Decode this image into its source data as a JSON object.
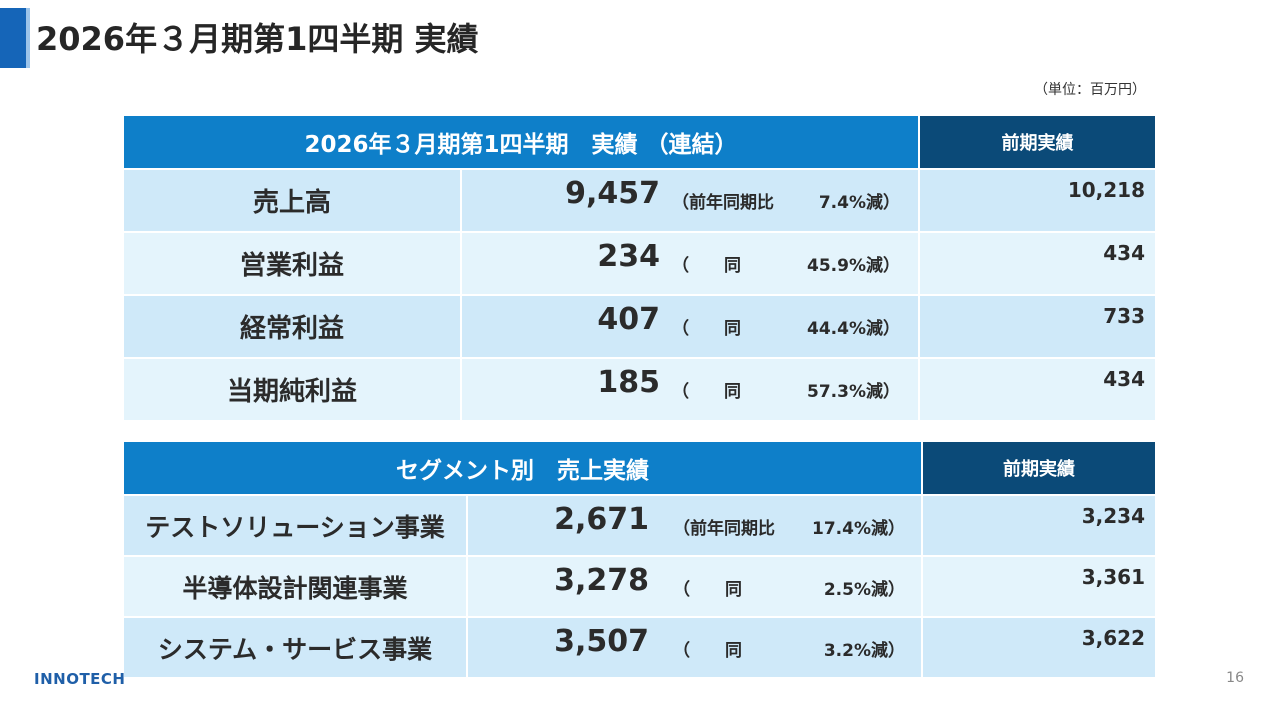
{
  "slide": {
    "title": "2026年３月期第1四半期 実績",
    "unit": "（単位：百万円）",
    "logo": "INNOTECH",
    "page_number": "16"
  },
  "table1": {
    "header_main": "2026年３月期第1四半期　実績 （連結）",
    "header_prev": "前期実績",
    "rows": [
      {
        "label": "売上高",
        "value": "9,457",
        "cmp_open": "（前年同期比",
        "cmp_same": "",
        "cmp_pct": "7.4%減）",
        "prev": "10,218"
      },
      {
        "label": "営業利益",
        "value": "234",
        "cmp_open": "（",
        "cmp_same": "同",
        "cmp_pct": "45.9%減）",
        "prev": "434"
      },
      {
        "label": "経常利益",
        "value": "407",
        "cmp_open": "（",
        "cmp_same": "同",
        "cmp_pct": "44.4%減）",
        "prev": "733"
      },
      {
        "label": "当期純利益",
        "value": "185",
        "cmp_open": "（",
        "cmp_same": "同",
        "cmp_pct": "57.3%減）",
        "prev": "434"
      }
    ]
  },
  "table2": {
    "header_main": "セグメント別　売上実績",
    "header_prev": "前期実績",
    "rows": [
      {
        "label": "テストソリューション事業",
        "value": "2,671",
        "cmp_open": "（前年同期比",
        "cmp_same": "",
        "cmp_pct": "17.4%減）",
        "prev": "3,234"
      },
      {
        "label": "半導体設計関連事業",
        "value": "3,278",
        "cmp_open": "（",
        "cmp_same": "同",
        "cmp_pct": "2.5%減）",
        "prev": "3,361"
      },
      {
        "label": "システム・サービス事業",
        "value": "3,507",
        "cmp_open": "（",
        "cmp_same": "同",
        "cmp_pct": "3.2%減）",
        "prev": "3,622"
      }
    ]
  },
  "colors": {
    "header_main": "#0e7fc9",
    "header_prev": "#0b4a78",
    "row_dark": "#cfe9f9",
    "row_light": "#e4f4fc",
    "accent": "#1565b8"
  }
}
